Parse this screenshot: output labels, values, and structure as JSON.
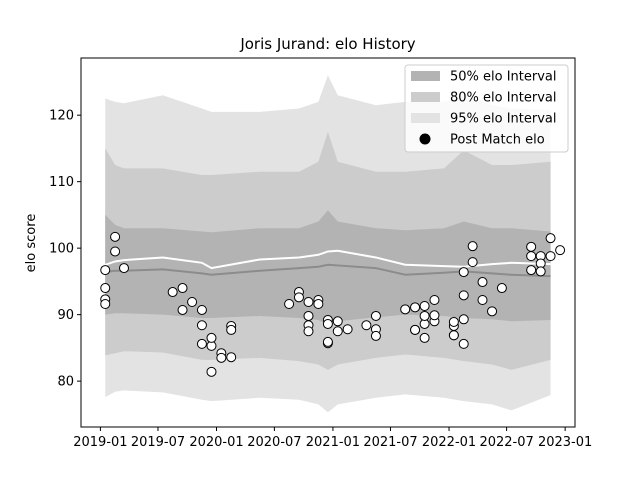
{
  "chart_data": {
    "type": "area",
    "title": "Joris Jurand: elo History",
    "ylabel": "elo score",
    "xlim": [
      "2018-11",
      "2023-02"
    ],
    "xticks": [
      "2019-01",
      "2019-07",
      "2020-01",
      "2020-07",
      "2021-01",
      "2021-07",
      "2022-01",
      "2022-07",
      "2023-01"
    ],
    "ylim": [
      73.1,
      128.6
    ],
    "yticks": [
      80,
      90,
      100,
      110,
      120
    ],
    "legend": "upper right",
    "x": [
      "2019-01",
      "2019-02",
      "2019-03",
      "2019-07",
      "2019-11",
      "2019-12",
      "2020-05",
      "2020-09",
      "2020-11",
      "2020-12",
      "2021-01",
      "2021-05",
      "2021-08",
      "2021-12",
      "2022-02",
      "2022-05",
      "2022-07",
      "2022-11"
    ],
    "bands": [
      {
        "name": "50% elo Interval",
        "color": "#b3b3b3",
        "upper": [
          105,
          103.5,
          103,
          103,
          102.5,
          102.4,
          103,
          103,
          104,
          105.7,
          104,
          103,
          102.7,
          103,
          104,
          103,
          103,
          102.5
        ],
        "lower": [
          90,
          90.2,
          90.2,
          90,
          89.5,
          89.5,
          89.8,
          89.5,
          89.2,
          88.4,
          89,
          89.6,
          90,
          89.8,
          89.5,
          89.3,
          89,
          89.2
        ]
      },
      {
        "name": "80% elo Interval",
        "color": "#cccccc",
        "upper": [
          115,
          112.5,
          112,
          112,
          111,
          111,
          111.5,
          111.5,
          113,
          117.5,
          113,
          111.5,
          111.5,
          112,
          114.7,
          112.5,
          112.5,
          113
        ],
        "lower": [
          83.9,
          84.2,
          84.5,
          84.3,
          83.2,
          83.2,
          83.5,
          83,
          82.5,
          81.7,
          82.5,
          83.5,
          84,
          83.5,
          83,
          82.5,
          81.7,
          83.2
        ]
      },
      {
        "name": "95% elo Interval",
        "color": "#e3e3e3",
        "upper": [
          122.5,
          122,
          121.8,
          123,
          121,
          120.5,
          120.5,
          121,
          122,
          126,
          123,
          121.5,
          122,
          122,
          123,
          121.5,
          121,
          120.8
        ],
        "lower": [
          77.6,
          78.4,
          78.6,
          78.3,
          77.2,
          77,
          77.5,
          77.2,
          76.5,
          75.3,
          76.5,
          77.5,
          78,
          77.5,
          77,
          76.5,
          75.6,
          77.9
        ]
      }
    ],
    "lines": [
      {
        "color": "#8c8c8c",
        "values": [
          96.4,
          96.6,
          96.6,
          96.8,
          96.2,
          96,
          96.6,
          97,
          97.2,
          97.5,
          97.4,
          97,
          96,
          96.3,
          96.5,
          96.2,
          96,
          95.8
        ]
      },
      {
        "color": "#ffffff",
        "values": [
          97.5,
          98,
          98.2,
          98.6,
          97.8,
          97,
          98.3,
          98.6,
          99,
          99.5,
          99.6,
          98.6,
          97.5,
          97.3,
          97.2,
          97.6,
          97.8,
          97.6
        ]
      }
    ],
    "points": {
      "name": "Post Match elo",
      "color": "#ffffff",
      "x": [
        "2019-01",
        "2019-01",
        "2019-01",
        "2019-01",
        "2019-02",
        "2019-02",
        "2019-03",
        "2019-08",
        "2019-09",
        "2019-09",
        "2019-10",
        "2019-11",
        "2019-11",
        "2019-11",
        "2019-12",
        "2019-12",
        "2019-12",
        "2020-01",
        "2020-01",
        "2020-02",
        "2020-02",
        "2020-02",
        "2020-08",
        "2020-09",
        "2020-09",
        "2020-10",
        "2020-10",
        "2020-10",
        "2020-10",
        "2020-11",
        "2020-11",
        "2020-12",
        "2020-12",
        "2020-12",
        "2020-12",
        "2021-01",
        "2021-01",
        "2021-02",
        "2021-04",
        "2021-05",
        "2021-05",
        "2021-05",
        "2021-08",
        "2021-09",
        "2021-09",
        "2021-09",
        "2021-10",
        "2021-10",
        "2021-10",
        "2021-10",
        "2021-11",
        "2021-11",
        "2021-11",
        "2022-01",
        "2022-01",
        "2022-01",
        "2022-01",
        "2022-02",
        "2022-02",
        "2022-02",
        "2022-02",
        "2022-03",
        "2022-03",
        "2022-04",
        "2022-04",
        "2022-05",
        "2022-06",
        "2022-09",
        "2022-09",
        "2022-09",
        "2022-10",
        "2022-10",
        "2022-10",
        "2022-11",
        "2022-11",
        "2022-12"
      ],
      "values": [
        92.3,
        94,
        91.6,
        96.7,
        99.5,
        101.7,
        97,
        93.4,
        94,
        90.7,
        91.9,
        90.7,
        88.4,
        85.6,
        85.3,
        86.5,
        81.4,
        84.2,
        83.5,
        88.3,
        87.7,
        83.6,
        91.6,
        93.4,
        92.6,
        89.8,
        88.4,
        87.5,
        91.9,
        92.2,
        91.6,
        89.2,
        85.7,
        88.6,
        85.9,
        87.5,
        89,
        87.8,
        88.4,
        89.8,
        87.8,
        86.8,
        90.8,
        91.1,
        87.7,
        87.7,
        88.6,
        89.8,
        86.5,
        91.3,
        89,
        92.2,
        89.9,
        86.9,
        86.9,
        88.3,
        88.9,
        85.6,
        89.3,
        92.9,
        96.4,
        100.3,
        97.9,
        94.9,
        92.2,
        90.5,
        94,
        98.8,
        96.7,
        100.2,
        98.8,
        97.7,
        96.5,
        98.8,
        101.5,
        99.7
      ]
    }
  }
}
